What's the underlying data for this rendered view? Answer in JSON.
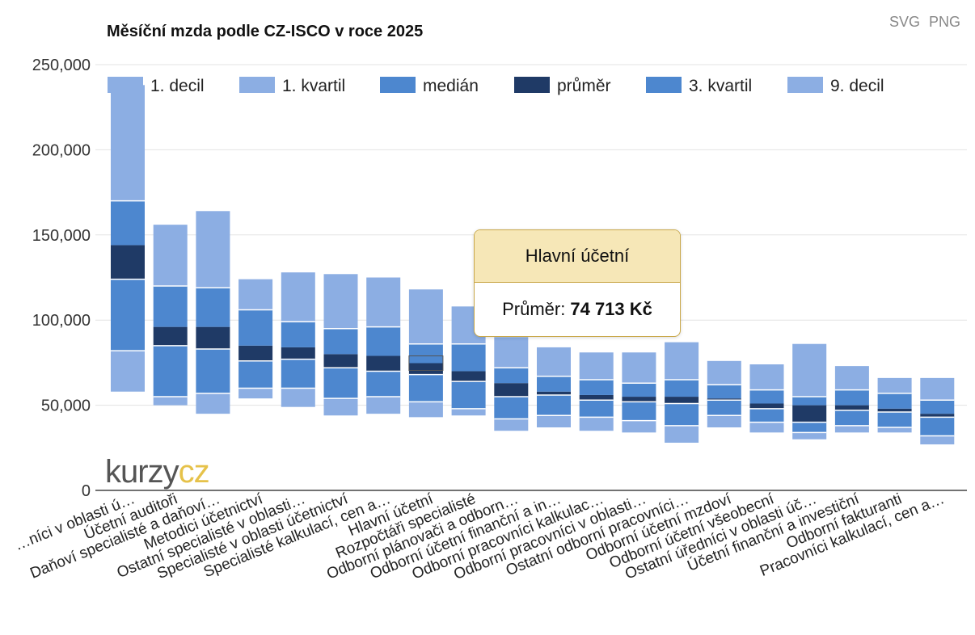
{
  "export": {
    "svg_label": "SVG",
    "png_label": "PNG"
  },
  "watermark": {
    "part1": "kurzy",
    "part2": "cz"
  },
  "tooltip": {
    "title": "Hlavní účetní",
    "label": "Průměr:",
    "value": "74 713 Kč"
  },
  "colors": {
    "decil": "#8caee3",
    "kvartil": "#4d87cf",
    "median_line": "#ffffff",
    "prumer": "#1f3a66",
    "grid": "#e3e3e3",
    "axis": "#444444"
  },
  "chart_data": {
    "type": "bar",
    "title": "Měsíční mzda podle CZ-ISCO v roce 2025",
    "y_ticks": [
      "0",
      "50,000",
      "100,000",
      "150,000",
      "200,000",
      "250,000"
    ],
    "ylim": [
      0,
      250000
    ],
    "grid": true,
    "legend_placement": "top",
    "legend": [
      "1. decil",
      "1. kvartil",
      "medián",
      "průměr",
      "3. kvartil",
      "9. decil"
    ],
    "categories": [
      "…níci v oblasti ú…",
      "Účetní auditoři",
      "Daňoví specialisté a daňoví…",
      "Metodici účetnictví",
      "Ostatní specialisté v oblasti…",
      "Specialisté v oblasti účetnictví",
      "Specialisté kalkulací, cen a…",
      "Hlavní účetní",
      "Rozpočtáři specialisté",
      "Odborní plánovači a odborn…",
      "Odborní účetní finanční a in…",
      "Odborní pracovníci kalkulac…",
      "Odborní pracovníci v oblasti…",
      "Ostatní odborní pracovníci…",
      "Odborní účetní mzdoví",
      "Odborní účetní všeobecní",
      "Ostatní úředníci v oblasti úč…",
      "Účetní finanční a investiční",
      "Odborní fakturanti",
      "Pracovníci kalkulací, cen a…"
    ],
    "decil_1": [
      58000,
      50000,
      45000,
      54000,
      49000,
      44000,
      45000,
      43000,
      44000,
      35000,
      37000,
      35000,
      34000,
      28000,
      37000,
      34000,
      30000,
      34000,
      34000,
      27000
    ],
    "kvartil_1": [
      82000,
      55000,
      57000,
      60000,
      60000,
      54000,
      55000,
      52000,
      48000,
      42000,
      44000,
      43000,
      41000,
      38000,
      44000,
      40000,
      34000,
      38000,
      37000,
      32000
    ],
    "median": [
      124000,
      85000,
      83000,
      76000,
      77000,
      72000,
      70000,
      68000,
      64000,
      55000,
      56000,
      53000,
      52000,
      51000,
      53000,
      48000,
      40000,
      47000,
      46000,
      43000
    ],
    "prumer": [
      144000,
      96000,
      96000,
      85000,
      84000,
      80000,
      79000,
      74713,
      70000,
      63000,
      58000,
      56000,
      55000,
      55000,
      54000,
      51000,
      50000,
      50000,
      48000,
      45000
    ],
    "kvartil_3": [
      170000,
      120000,
      119000,
      106000,
      99000,
      95000,
      96000,
      86000,
      86000,
      72000,
      67000,
      65000,
      63000,
      65000,
      62000,
      59000,
      55000,
      59000,
      57000,
      53000
    ],
    "decil_9": [
      238000,
      156000,
      164000,
      124000,
      128000,
      127000,
      125000,
      118000,
      108000,
      90000,
      84000,
      81000,
      81000,
      87000,
      76000,
      74000,
      86000,
      73000,
      66000,
      66000
    ]
  }
}
